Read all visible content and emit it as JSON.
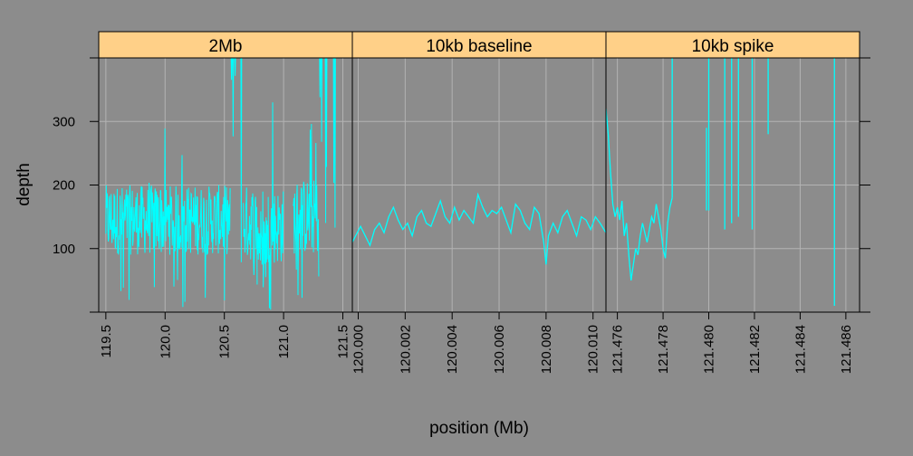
{
  "colors": {
    "background": "#8c8c8c",
    "strip": "#ffd088",
    "line": "#00ffff",
    "grid": "#b3b3b3",
    "frame": "#000000"
  },
  "chart_data": {
    "type": "line",
    "layout": "trellis-panels",
    "xlabel": "position (Mb)",
    "ylabel": "depth",
    "ylim": [
      0,
      400
    ],
    "y_ticks": [
      100,
      200,
      300
    ],
    "y_tick_labels": [
      "100",
      "200",
      "300"
    ],
    "grid": true,
    "panels": [
      {
        "strip": "2Mb",
        "xlim": [
          119.44,
          121.58
        ],
        "x_ticks": [
          119.5,
          120.0,
          120.5,
          121.0,
          121.5
        ],
        "x_tick_labels": [
          "119.5",
          "120.0",
          "120.5",
          "121.0",
          "121.5"
        ],
        "series": [
          {
            "style": "dense-noisy",
            "segments": [
              {
                "x": [
                  119.5,
                  120.55
                ],
                "level": 145,
                "spread": 55,
                "low": 0,
                "high": 290
              },
              {
                "x": [
                  120.55,
                  120.66
                ],
                "level": 400,
                "spread": 0,
                "low": 60,
                "high": 400
              },
              {
                "x": [
                  120.66,
                  120.78
                ],
                "level": 140,
                "spread": 60,
                "low": 30,
                "high": 240
              },
              {
                "x": [
                  120.78,
                  120.87
                ],
                "level": 115,
                "spread": 50,
                "low": 20,
                "high": 200
              },
              {
                "x": [
                  120.87,
                  121.0
                ],
                "level": 135,
                "spread": 60,
                "low": 0,
                "high": 400
              },
              {
                "x": [
                  121.0,
                  121.08
                ],
                "level": 0,
                "spread": 0,
                "low": 0,
                "high": 0
              },
              {
                "x": [
                  121.08,
                  121.3
                ],
                "level": 150,
                "spread": 60,
                "low": 20,
                "high": 330
              },
              {
                "x": [
                  121.3,
                  121.44
                ],
                "level": 400,
                "spread": 0,
                "low": 0,
                "high": 400
              }
            ]
          }
        ]
      },
      {
        "strip": "10kb baseline",
        "xlim": [
          119.99975,
          120.01055
        ],
        "x_ticks": [
          120.0,
          120.002,
          120.004,
          120.006,
          120.008,
          120.01
        ],
        "x_tick_labels": [
          "120.000",
          "120.002",
          "120.004",
          "120.006",
          "120.008",
          "120.010"
        ],
        "series": [
          {
            "x": [
              119.99975,
              120.0001,
              120.0003,
              120.0005,
              120.0007,
              120.0009,
              120.0011,
              120.0013,
              120.0015,
              120.0017,
              120.0019,
              120.0021,
              120.0023,
              120.0025,
              120.0027,
              120.0029,
              120.0031,
              120.0033,
              120.0035,
              120.0037,
              120.0039,
              120.0041,
              120.0043,
              120.0045,
              120.0047,
              120.0049,
              120.0051,
              120.0053,
              120.0055,
              120.0057,
              120.0059,
              120.0061,
              120.0063,
              120.0065,
              120.0067,
              120.0069,
              120.0071,
              120.0073,
              120.0075,
              120.0077,
              120.0079,
              120.008,
              120.0081,
              120.0083,
              120.0085,
              120.0087,
              120.0089,
              120.0091,
              120.0093,
              120.0095,
              120.0097,
              120.0099,
              120.0101,
              120.0103,
              120.01055
            ],
            "y": [
              110,
              135,
              120,
              105,
              130,
              140,
              125,
              150,
              165,
              145,
              130,
              140,
              120,
              150,
              160,
              140,
              135,
              155,
              175,
              150,
              140,
              165,
              145,
              160,
              150,
              140,
              185,
              165,
              150,
              160,
              155,
              165,
              145,
              125,
              170,
              160,
              140,
              130,
              165,
              155,
              110,
              75,
              120,
              140,
              125,
              150,
              160,
              140,
              120,
              150,
              145,
              130,
              150,
              140,
              125
            ]
          }
        ]
      },
      {
        "strip": "10kb spike",
        "xlim": [
          121.4755,
          121.4866
        ],
        "x_ticks": [
          121.476,
          121.478,
          121.48,
          121.482,
          121.484,
          121.486
        ],
        "x_tick_labels": [
          "121.476",
          "121.478",
          "121.480",
          "121.482",
          "121.484",
          "121.486"
        ],
        "series": [
          {
            "segments": [
              {
                "x": [
                  121.4755,
                  121.4756,
                  121.4757,
                  121.4758,
                  121.4759,
                  121.476,
                  121.4761,
                  121.4762,
                  121.4763,
                  121.4764,
                  121.4765,
                  121.4766,
                  121.4767,
                  121.4768,
                  121.4769,
                  121.477,
                  121.4771,
                  121.4772,
                  121.4773,
                  121.4774,
                  121.4775,
                  121.4776,
                  121.4777,
                  121.4778,
                  121.4779,
                  121.478,
                  121.4781,
                  121.4782,
                  121.4783,
                  121.4784
                ],
                "y": [
                  320,
                  280,
                  220,
                  170,
                  150,
                  165,
                  145,
                  175,
                  120,
                  140,
                  90,
                  50,
                  75,
                  100,
                  90,
                  120,
                  140,
                  125,
                  110,
                  130,
                  150,
                  140,
                  170,
                  150,
                  130,
                  100,
                  85,
                  140,
                  165,
                  180
                ]
              }
            ],
            "spikes": [
              {
                "x": 121.4784,
                "y0": 180,
                "y1": 400
              },
              {
                "x": 121.4799,
                "y0": 160,
                "y1": 290
              },
              {
                "x": 121.48,
                "y0": 160,
                "y1": 400
              },
              {
                "x": 121.4807,
                "y0": 130,
                "y1": 400
              },
              {
                "x": 121.481,
                "y0": 140,
                "y1": 400
              },
              {
                "x": 121.4813,
                "y0": 150,
                "y1": 400
              },
              {
                "x": 121.4819,
                "y0": 130,
                "y1": 400
              },
              {
                "x": 121.4826,
                "y0": 280,
                "y1": 400
              },
              {
                "x": 121.4855,
                "y0": 10,
                "y1": 400
              }
            ]
          }
        ]
      }
    ]
  }
}
